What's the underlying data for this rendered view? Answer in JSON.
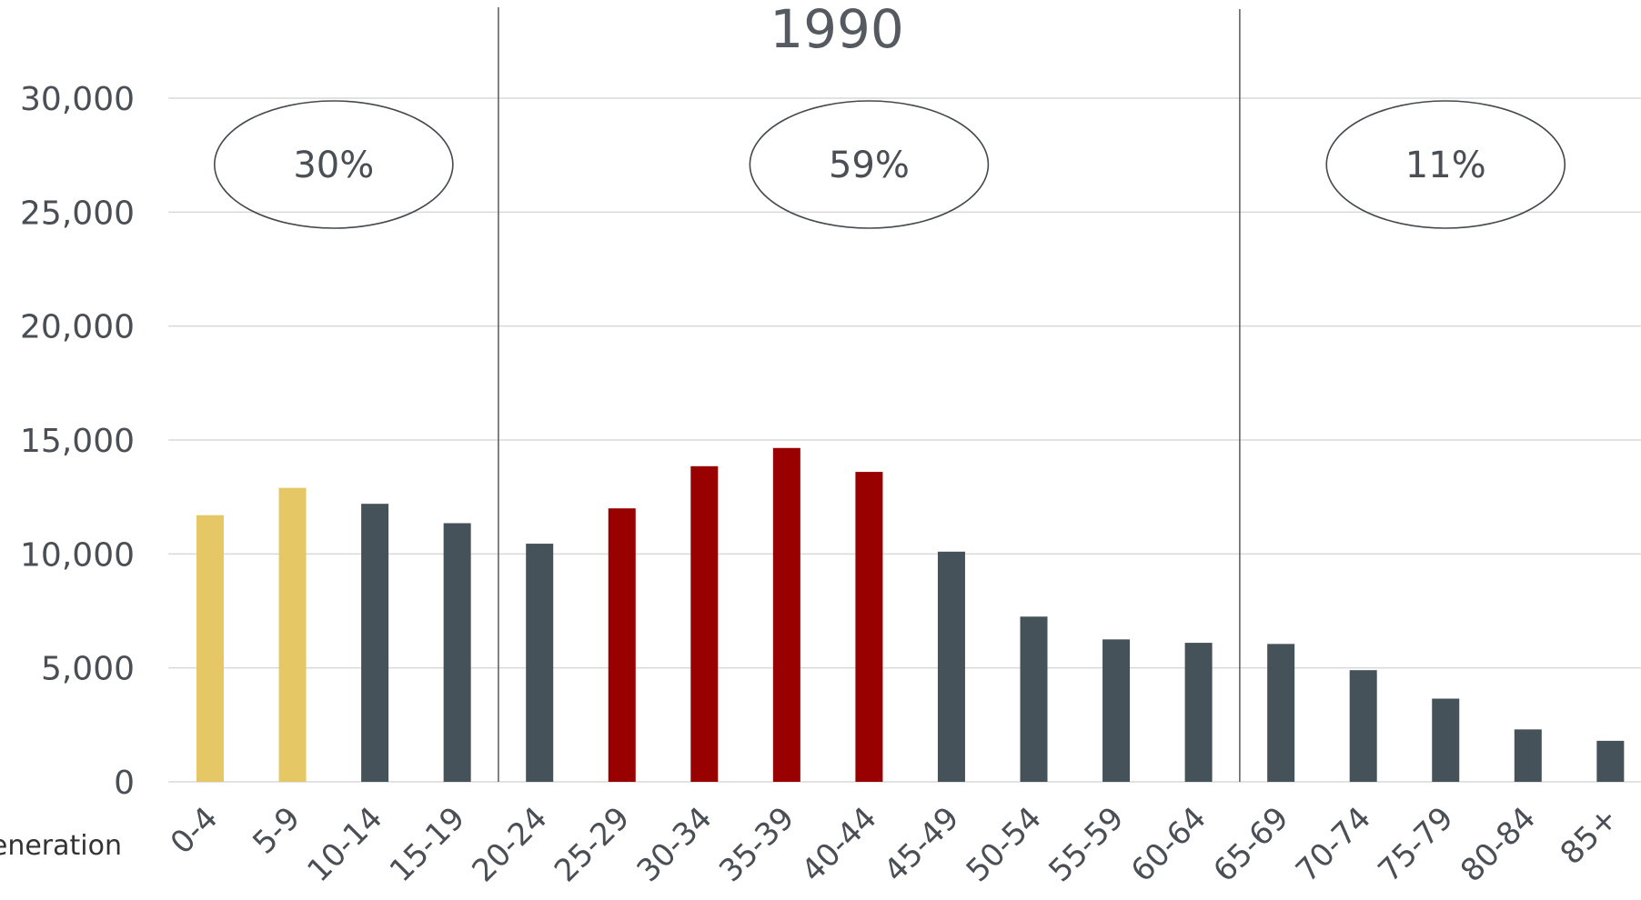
{
  "chart_data": {
    "type": "bar",
    "title": "1990",
    "clipped_label": "eneration",
    "categories": [
      "0-4",
      "5-9",
      "10-14",
      "15-19",
      "20-24",
      "25-29",
      "30-34",
      "35-39",
      "40-44",
      "45-49",
      "50-54",
      "55-59",
      "60-64",
      "65-69",
      "70-74",
      "75-79",
      "80-84",
      "85+"
    ],
    "values": [
      11700,
      12900,
      12200,
      11350,
      10450,
      12000,
      13850,
      14650,
      13600,
      10100,
      7250,
      6250,
      6100,
      6050,
      4900,
      3650,
      2300,
      1800
    ],
    "bar_color_keys": [
      "gold",
      "gold",
      "slate",
      "slate",
      "slate",
      "red",
      "red",
      "red",
      "red",
      "slate",
      "slate",
      "slate",
      "slate",
      "slate",
      "slate",
      "slate",
      "slate",
      "slate"
    ],
    "ylim": [
      0,
      30000
    ],
    "yticks": [
      "0",
      "5,000",
      "10,000",
      "15,000",
      "20,000",
      "25,000",
      "30,000"
    ],
    "ytick_values": [
      0,
      5000,
      10000,
      15000,
      20000,
      25000,
      30000
    ],
    "grid": true,
    "dividers_after_index": [
      3,
      12
    ],
    "group_labels": [
      {
        "text": "30%",
        "from_index": 0,
        "to_index": 3
      },
      {
        "text": "59%",
        "from_index": 4,
        "to_index": 12
      },
      {
        "text": "11%",
        "from_index": 13,
        "to_index": 17
      }
    ],
    "colors": {
      "gold": "#e6c766",
      "slate": "#465259",
      "red": "#990000",
      "grid": "#d9d9d9",
      "divider": "#595959",
      "ellipse": "#44494e"
    }
  }
}
